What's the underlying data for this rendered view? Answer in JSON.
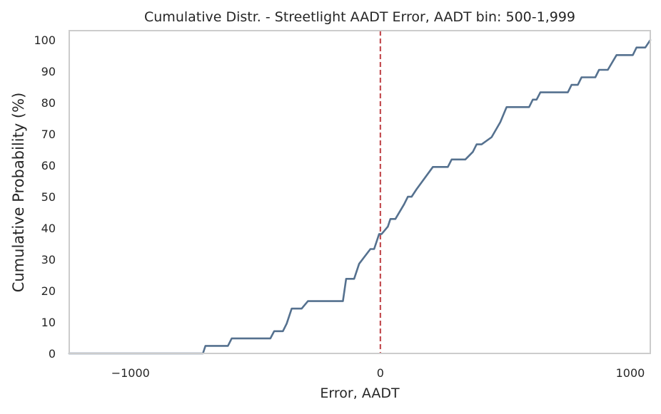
{
  "chart_data": {
    "type": "line",
    "title": "Cumulative Distr. - Streetlight AADT Error, AADT bin: 500-1,999",
    "xlabel": "Error, AADT",
    "ylabel": "Cumulative Probability (%)",
    "xlim": [
      -1245,
      1080
    ],
    "ylim": [
      0,
      103
    ],
    "x_ticks": [
      -1000,
      0,
      1000
    ],
    "x_tick_labels": [
      "−1000",
      "0",
      "1000"
    ],
    "y_ticks": [
      0,
      10,
      20,
      30,
      40,
      50,
      60,
      70,
      80,
      90,
      100
    ],
    "y_tick_labels": [
      "0",
      "10",
      "20",
      "30",
      "40",
      "50",
      "60",
      "70",
      "80",
      "90",
      "100"
    ],
    "grid": false,
    "reference_line": {
      "x": 0,
      "style": "dashed",
      "color": "#c44e52"
    },
    "series": [
      {
        "color": "#55718f",
        "x": [
          -710,
          -700,
          -610,
          -595,
          -440,
          -425,
          -390,
          -375,
          -355,
          -315,
          -290,
          -150,
          -137,
          -105,
          -85,
          -40,
          -25,
          -15,
          -5,
          5,
          30,
          40,
          60,
          95,
          110,
          125,
          145,
          210,
          270,
          285,
          340,
          370,
          385,
          405,
          445,
          480,
          505,
          595,
          610,
          625,
          640,
          750,
          765,
          790,
          805,
          860,
          875,
          910,
          945,
          1010,
          1025,
          1060,
          1080
        ],
        "y": [
          0,
          2.4,
          2.4,
          4.8,
          4.8,
          7.1,
          7.1,
          9.5,
          14.3,
          14.3,
          16.7,
          16.7,
          23.8,
          23.8,
          28.6,
          33.3,
          33.3,
          35.7,
          38.1,
          38.1,
          40.5,
          42.9,
          42.9,
          47.6,
          50,
          50,
          52.4,
          59.5,
          59.5,
          61.9,
          61.9,
          64.3,
          66.7,
          66.7,
          69.0,
          73.8,
          78.6,
          78.6,
          81.0,
          81.0,
          83.3,
          83.3,
          85.7,
          85.7,
          88.1,
          88.1,
          90.5,
          90.5,
          95.2,
          95.2,
          97.6,
          97.6,
          100
        ]
      }
    ]
  }
}
